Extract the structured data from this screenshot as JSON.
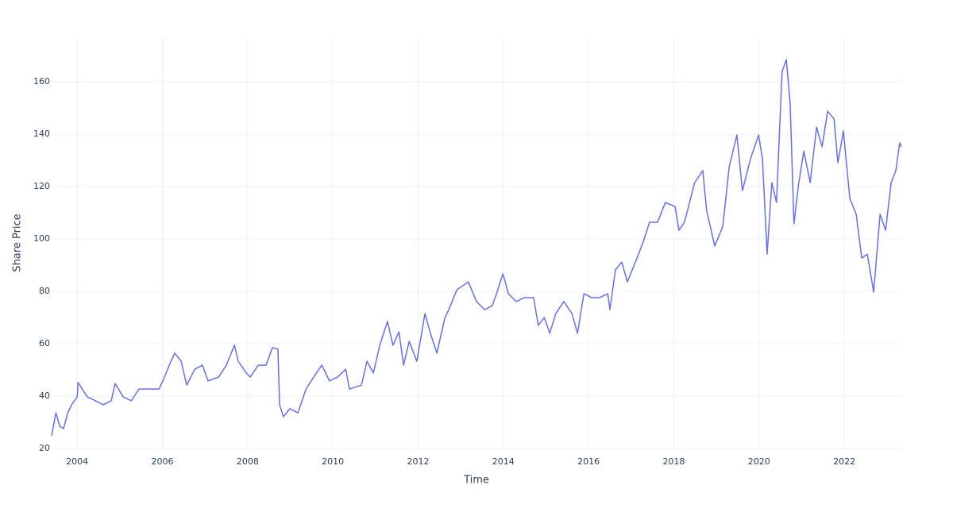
{
  "chart_data": {
    "type": "line",
    "x_label": "Time",
    "y_label": "Share Price",
    "color": "#636efa",
    "grid": true,
    "xlim": [
      2003.4,
      2023.34
    ],
    "ylim": [
      20,
      176.7
    ],
    "xticks": [
      2004,
      2006,
      2008,
      2010,
      2012,
      2014,
      2016,
      2018,
      2020,
      2022
    ],
    "yticks": [
      20,
      40,
      60,
      80,
      100,
      120,
      140,
      160
    ],
    "x": [
      2003.4,
      2003.5,
      2003.59,
      2003.68,
      2003.78,
      2003.87,
      2004.0,
      2004.02,
      2004.24,
      2004.43,
      2004.61,
      2004.8,
      2004.89,
      2005.08,
      2005.27,
      2005.45,
      2005.73,
      2005.92,
      2006.01,
      2006.2,
      2006.29,
      2006.44,
      2006.57,
      2006.76,
      2006.94,
      2007.07,
      2007.32,
      2007.5,
      2007.69,
      2007.78,
      2007.97,
      2008.06,
      2008.25,
      2008.43,
      2008.58,
      2008.71,
      2008.75,
      2008.84,
      2008.99,
      2009.18,
      2009.37,
      2009.55,
      2009.74,
      2009.92,
      2010.11,
      2010.3,
      2010.39,
      2010.67,
      2010.8,
      2010.95,
      2011.1,
      2011.28,
      2011.41,
      2011.55,
      2011.66,
      2011.79,
      2011.97,
      2012.16,
      2012.29,
      2012.44,
      2012.63,
      2012.72,
      2012.91,
      2013.18,
      2013.37,
      2013.56,
      2013.74,
      2013.84,
      2013.99,
      2014.12,
      2014.3,
      2014.49,
      2014.71,
      2014.82,
      2014.96,
      2015.09,
      2015.23,
      2015.42,
      2015.61,
      2015.74,
      2015.89,
      2016.07,
      2016.26,
      2016.45,
      2016.5,
      2016.63,
      2016.78,
      2016.91,
      2017.1,
      2017.28,
      2017.43,
      2017.62,
      2017.8,
      2018.03,
      2018.12,
      2018.25,
      2018.49,
      2018.68,
      2018.77,
      2018.96,
      2019.15,
      2019.3,
      2019.48,
      2019.61,
      2019.8,
      2019.99,
      2020.08,
      2020.19,
      2020.3,
      2020.41,
      2020.54,
      2020.64,
      2020.73,
      2020.82,
      2020.92,
      2021.05,
      2021.2,
      2021.35,
      2021.48,
      2021.61,
      2021.76,
      2021.85,
      2021.98,
      2022.13,
      2022.28,
      2022.41,
      2022.54,
      2022.69,
      2022.84,
      2022.97,
      2023.1,
      2023.21,
      2023.3,
      2023.34
    ],
    "values": [
      24.8,
      33.6,
      28.5,
      27.6,
      33.6,
      36.7,
      39.7,
      45.2,
      39.7,
      38.2,
      36.7,
      38.2,
      44.8,
      39.7,
      38.2,
      42.7,
      42.7,
      42.7,
      45.8,
      53.3,
      56.4,
      53.3,
      44.2,
      50.3,
      51.8,
      45.8,
      47.3,
      51.8,
      59.4,
      53.3,
      48.8,
      47.3,
      51.8,
      51.8,
      58.5,
      57.9,
      36.7,
      32.1,
      35.2,
      33.6,
      42.7,
      47.3,
      51.8,
      45.8,
      47.3,
      50.3,
      42.7,
      44.2,
      53.3,
      48.8,
      59.4,
      68.5,
      59.4,
      64.5,
      51.8,
      60.9,
      53.3,
      71.5,
      63.9,
      56.4,
      70,
      73,
      80.6,
      83.6,
      76.1,
      73,
      74.5,
      79.1,
      86.7,
      79.1,
      76.1,
      77.6,
      77.6,
      67,
      70,
      64,
      71.5,
      76.1,
      71.5,
      64,
      79.1,
      77.6,
      77.6,
      79.1,
      73,
      88.2,
      91.2,
      83.6,
      91.2,
      98.8,
      106.4,
      106.4,
      113.9,
      112.4,
      103.3,
      106.4,
      121.5,
      126.1,
      110.9,
      97.3,
      104.8,
      127.6,
      139.7,
      118.5,
      130.6,
      139.7,
      130.6,
      94.2,
      121.5,
      113.9,
      163.9,
      168.5,
      151.8,
      105.8,
      120,
      133.6,
      121.5,
      142.7,
      135.2,
      148.8,
      145.8,
      129.1,
      141.2,
      115.5,
      109.4,
      92.7,
      94.2,
      79.7,
      109.4,
      103.3,
      121.5,
      126.1,
      136.7,
      135.2
    ]
  }
}
